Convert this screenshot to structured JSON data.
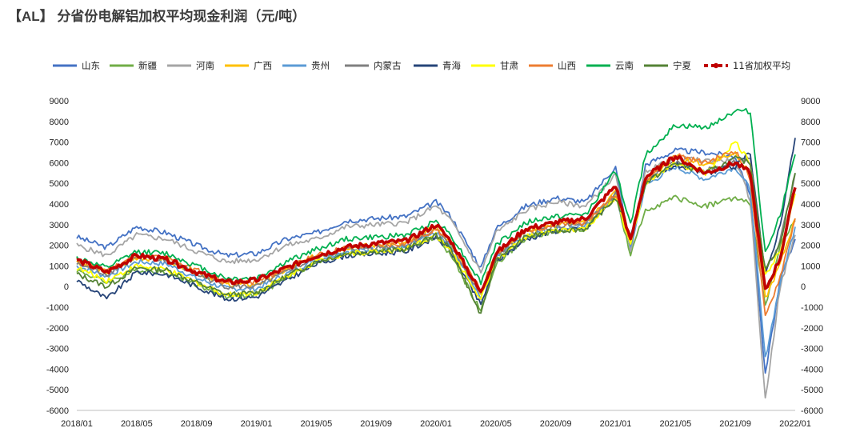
{
  "title": "【AL】 分省份电解铝加权平均现金利润（元/吨）",
  "chart_data": {
    "type": "line",
    "title": "【AL】 分省份电解铝加权平均现金利润（元/吨）",
    "xlabel": "",
    "ylabel": "",
    "ylim": [
      -6000,
      9000
    ],
    "y_ticks": [
      9000,
      8000,
      7000,
      6000,
      5000,
      4000,
      3000,
      2000,
      1000,
      0,
      -1000,
      -2000,
      -3000,
      -4000,
      -5000,
      -6000
    ],
    "negative_tick_color": "#ff0000",
    "x_ticks": [
      "2018/01",
      "2018/05",
      "2018/09",
      "2019/01",
      "2019/05",
      "2019/09",
      "2020/01",
      "2020/05",
      "2020/09",
      "2021/01",
      "2021/05",
      "2021/09",
      "2022/01"
    ],
    "x_range": [
      "2018/01",
      "2022/01"
    ],
    "legend_position": "top",
    "grid": false,
    "x": [
      "2018/01",
      "2018/03",
      "2018/05",
      "2018/07",
      "2018/09",
      "2018/11",
      "2019/01",
      "2019/03",
      "2019/05",
      "2019/07",
      "2019/09",
      "2019/11",
      "2020/01",
      "2020/02",
      "2020/04",
      "2020/05",
      "2020/07",
      "2020/09",
      "2020/11",
      "2021/01",
      "2021/02",
      "2021/03",
      "2021/05",
      "2021/07",
      "2021/09",
      "2021/10",
      "2021/11",
      "2021/12",
      "2022/01"
    ],
    "series": [
      {
        "name": "山东",
        "color": "#4472c4",
        "values": [
          2400,
          1900,
          2900,
          2600,
          2000,
          1500,
          1600,
          2300,
          2600,
          3200,
          3300,
          3400,
          4100,
          3400,
          900,
          2800,
          3900,
          4300,
          4100,
          5800,
          1700,
          5900,
          6600,
          6500,
          6300,
          4500,
          -4300,
          300,
          2300
        ]
      },
      {
        "name": "新疆",
        "color": "#70ad47",
        "values": [
          800,
          200,
          800,
          700,
          100,
          -500,
          -400,
          400,
          1200,
          1600,
          1800,
          1900,
          2400,
          1500,
          -1200,
          1100,
          2300,
          2700,
          2800,
          4400,
          1500,
          3700,
          4300,
          3900,
          4300,
          4000,
          -1000,
          2000,
          3200
        ]
      },
      {
        "name": "河南",
        "color": "#a5a5a5",
        "values": [
          2000,
          1500,
          2500,
          2300,
          1700,
          1200,
          1300,
          2000,
          2300,
          2900,
          3000,
          3100,
          3900,
          3200,
          700,
          2600,
          3700,
          4100,
          3900,
          5400,
          1700,
          5600,
          6200,
          6100,
          6100,
          4200,
          -5500,
          0,
          2500
        ]
      },
      {
        "name": "广西",
        "color": "#ffc000",
        "values": [
          1200,
          700,
          1400,
          1300,
          700,
          100,
          100,
          800,
          1500,
          1900,
          2000,
          2100,
          2900,
          2100,
          -300,
          1600,
          2700,
          3000,
          3100,
          4600,
          2100,
          5200,
          6300,
          5900,
          6500,
          5400,
          -600,
          1100,
          3300
        ]
      },
      {
        "name": "贵州",
        "color": "#5b9bd5",
        "values": [
          1000,
          500,
          1200,
          1100,
          400,
          -100,
          -100,
          600,
          1300,
          1700,
          1800,
          1900,
          2600,
          1900,
          -500,
          1400,
          2500,
          2800,
          2900,
          4400,
          1900,
          4900,
          5800,
          5200,
          5800,
          4700,
          -3500,
          200,
          2900
        ]
      },
      {
        "name": "内蒙古",
        "color": "#7f7f7f",
        "values": [
          1100,
          600,
          1400,
          1300,
          600,
          0,
          0,
          700,
          1400,
          1800,
          1900,
          2000,
          2800,
          2000,
          -400,
          1500,
          2600,
          2900,
          3000,
          4500,
          2000,
          5100,
          6000,
          5600,
          6000,
          6300,
          700,
          2200,
          5500
        ]
      },
      {
        "name": "青海",
        "color": "#264478",
        "values": [
          300,
          -600,
          700,
          600,
          0,
          -600,
          -500,
          300,
          1100,
          1500,
          1600,
          1700,
          2400,
          1700,
          -900,
          1200,
          2300,
          2700,
          2800,
          4300,
          2400,
          5000,
          5900,
          5500,
          5800,
          6500,
          500,
          3000,
          7200
        ]
      },
      {
        "name": "甘肃",
        "color": "#ffff00",
        "values": [
          900,
          300,
          1000,
          800,
          200,
          -400,
          -300,
          500,
          1200,
          1600,
          1700,
          1800,
          2500,
          1700,
          -600,
          1300,
          2400,
          2700,
          2800,
          4300,
          2000,
          5000,
          6000,
          5500,
          7000,
          6000,
          500,
          1800,
          4500
        ]
      },
      {
        "name": "山西",
        "color": "#ed7d31",
        "values": [
          1300,
          800,
          1500,
          1400,
          800,
          200,
          200,
          900,
          1500,
          1900,
          2000,
          2100,
          2800,
          2100,
          -200,
          1600,
          2700,
          3000,
          3100,
          4500,
          2200,
          5200,
          6400,
          6000,
          6600,
          5200,
          -1500,
          500,
          3300
        ]
      },
      {
        "name": "云南",
        "color": "#00b050",
        "values": [
          1400,
          900,
          1700,
          1600,
          1000,
          400,
          400,
          1200,
          1800,
          2300,
          2400,
          2500,
          3200,
          2500,
          200,
          2000,
          3100,
          3400,
          3500,
          5600,
          3000,
          6400,
          7800,
          7700,
          8500,
          8500,
          1600,
          3500,
          6400
        ]
      },
      {
        "name": "宁夏",
        "color": "#548235",
        "values": [
          600,
          0,
          900,
          800,
          200,
          -400,
          -300,
          500,
          1200,
          1600,
          1700,
          1800,
          2500,
          1800,
          -1400,
          1300,
          2400,
          2700,
          2800,
          4300,
          2400,
          5000,
          6000,
          5500,
          6200,
          6000,
          800,
          2100,
          5500
        ]
      },
      {
        "name": "11省加权平均",
        "color": "#c00000",
        "values": [
          1300,
          700,
          1500,
          1300,
          700,
          200,
          300,
          900,
          1500,
          1900,
          2100,
          2200,
          3000,
          2200,
          -300,
          1600,
          2800,
          3100,
          3300,
          4900,
          2200,
          5300,
          6300,
          5500,
          6000,
          5500,
          -200,
          1400,
          4800
        ]
      }
    ]
  }
}
